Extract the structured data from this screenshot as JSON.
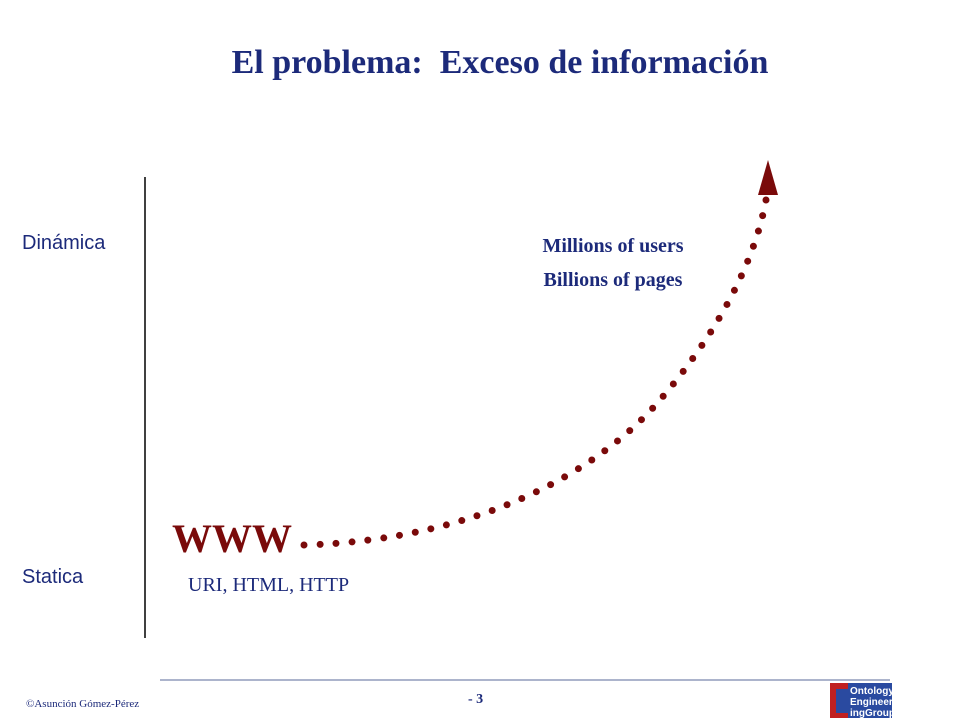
{
  "title": "El problema:  Exceso de información",
  "axis": {
    "top": "Dinámica",
    "bottom": "Statica"
  },
  "start": {
    "label": "WWW",
    "sublabel": "URI, HTML, HTTP"
  },
  "end": {
    "lines": [
      "Millions of users",
      "Billions of pages"
    ]
  },
  "footer": {
    "author": "©Asunción Gómez-Pérez",
    "page": "- 3",
    "logo": [
      "Ontology",
      "Engineer",
      "ingGroup"
    ]
  }
}
